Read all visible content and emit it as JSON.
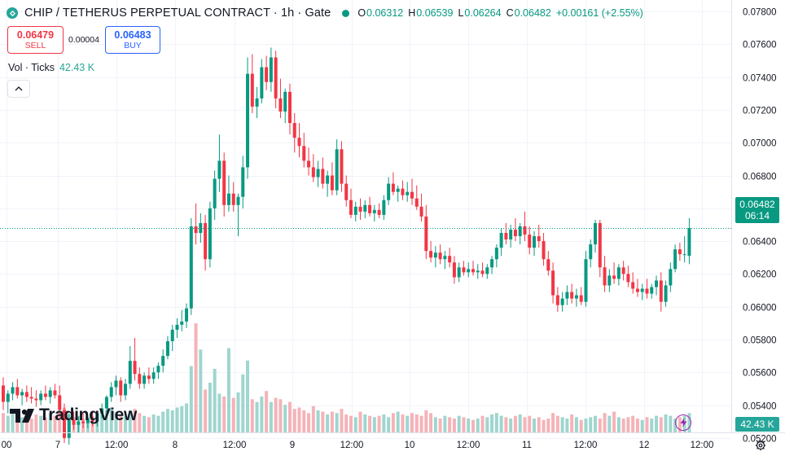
{
  "header": {
    "title": "CHIP / TETHERUS PERPETUAL CONTRACT · 1h · Gate",
    "ohlc": {
      "o_label": "O",
      "o": "0.06312",
      "h_label": "H",
      "h": "0.06539",
      "l_label": "L",
      "l": "0.06264",
      "c_label": "C",
      "c": "0.06482",
      "change": "+0.00161 (+2.55%)"
    }
  },
  "trade": {
    "sell_price": "0.06479",
    "sell_label": "SELL",
    "spread": "0.00004",
    "buy_price": "0.06483",
    "buy_label": "BUY"
  },
  "volume_legend": {
    "label": "Vol · Ticks",
    "value": "42.43 K"
  },
  "brand": {
    "name": "TradingView"
  },
  "price_tag": {
    "price": "0.06482",
    "countdown": "06:14"
  },
  "volume_tag": "42.43 K",
  "colors": {
    "up": "#089981",
    "down": "#f23645",
    "vol_up": "#9fd6cf",
    "vol_down": "#f5b3b8",
    "accent": "#2962ff"
  },
  "chart_data": {
    "type": "candlestick",
    "y_axis": {
      "min": 0.051,
      "max": 0.0786,
      "ticks": [
        "0.07800",
        "0.07600",
        "0.07400",
        "0.07200",
        "0.07000",
        "0.06800",
        "0.06600",
        "0.06400",
        "0.06200",
        "0.06000",
        "0.05800",
        "0.05600",
        "0.05400",
        "0.05200"
      ]
    },
    "x_axis_labels": [
      "00",
      "7",
      "12:00",
      "8",
      "12:00",
      "9",
      "12:00",
      "10",
      "12:00",
      "11",
      "12:00",
      "12",
      "12:00"
    ],
    "last_price": 0.06482,
    "candles": [
      {
        "o": 0.0552,
        "h": 0.0557,
        "l": 0.0537,
        "c": 0.0542
      },
      {
        "o": 0.0542,
        "h": 0.0549,
        "l": 0.0535,
        "c": 0.0547
      },
      {
        "o": 0.0547,
        "h": 0.0554,
        "l": 0.0543,
        "c": 0.0551
      },
      {
        "o": 0.0551,
        "h": 0.0556,
        "l": 0.0544,
        "c": 0.0546
      },
      {
        "o": 0.0546,
        "h": 0.055,
        "l": 0.054,
        "c": 0.0548
      },
      {
        "o": 0.0548,
        "h": 0.0552,
        "l": 0.0542,
        "c": 0.0545
      },
      {
        "o": 0.0545,
        "h": 0.0551,
        "l": 0.0541,
        "c": 0.0544
      },
      {
        "o": 0.0544,
        "h": 0.0549,
        "l": 0.0539,
        "c": 0.0543
      },
      {
        "o": 0.0543,
        "h": 0.0549,
        "l": 0.054,
        "c": 0.0547
      },
      {
        "o": 0.0547,
        "h": 0.0552,
        "l": 0.0543,
        "c": 0.0545
      },
      {
        "o": 0.0545,
        "h": 0.0551,
        "l": 0.0541,
        "c": 0.0549
      },
      {
        "o": 0.0549,
        "h": 0.0553,
        "l": 0.0544,
        "c": 0.0546
      },
      {
        "o": 0.0546,
        "h": 0.0552,
        "l": 0.0533,
        "c": 0.0537
      },
      {
        "o": 0.0537,
        "h": 0.0541,
        "l": 0.0517,
        "c": 0.052
      },
      {
        "o": 0.052,
        "h": 0.0535,
        "l": 0.0516,
        "c": 0.0531
      },
      {
        "o": 0.0531,
        "h": 0.0536,
        "l": 0.0525,
        "c": 0.0528
      },
      {
        "o": 0.0528,
        "h": 0.0533,
        "l": 0.0523,
        "c": 0.053
      },
      {
        "o": 0.053,
        "h": 0.0535,
        "l": 0.0526,
        "c": 0.0529
      },
      {
        "o": 0.0529,
        "h": 0.0534,
        "l": 0.0526,
        "c": 0.0532
      },
      {
        "o": 0.0532,
        "h": 0.0536,
        "l": 0.0527,
        "c": 0.053
      },
      {
        "o": 0.053,
        "h": 0.0536,
        "l": 0.0527,
        "c": 0.0535
      },
      {
        "o": 0.0535,
        "h": 0.0541,
        "l": 0.0532,
        "c": 0.0538
      },
      {
        "o": 0.0538,
        "h": 0.0546,
        "l": 0.0535,
        "c": 0.0545
      },
      {
        "o": 0.0545,
        "h": 0.0554,
        "l": 0.0542,
        "c": 0.0551
      },
      {
        "o": 0.0551,
        "h": 0.0558,
        "l": 0.0546,
        "c": 0.0555
      },
      {
        "o": 0.0555,
        "h": 0.0557,
        "l": 0.0542,
        "c": 0.0546
      },
      {
        "o": 0.0546,
        "h": 0.0556,
        "l": 0.0543,
        "c": 0.0553
      },
      {
        "o": 0.0553,
        "h": 0.0576,
        "l": 0.055,
        "c": 0.0567
      },
      {
        "o": 0.0567,
        "h": 0.0581,
        "l": 0.0555,
        "c": 0.0559
      },
      {
        "o": 0.0559,
        "h": 0.0563,
        "l": 0.055,
        "c": 0.0553
      },
      {
        "o": 0.0553,
        "h": 0.056,
        "l": 0.055,
        "c": 0.0558
      },
      {
        "o": 0.0558,
        "h": 0.0563,
        "l": 0.0553,
        "c": 0.0556
      },
      {
        "o": 0.0556,
        "h": 0.0563,
        "l": 0.0553,
        "c": 0.056
      },
      {
        "o": 0.056,
        "h": 0.0566,
        "l": 0.0556,
        "c": 0.0564
      },
      {
        "o": 0.0564,
        "h": 0.0574,
        "l": 0.056,
        "c": 0.057
      },
      {
        "o": 0.057,
        "h": 0.0582,
        "l": 0.0568,
        "c": 0.0579
      },
      {
        "o": 0.0579,
        "h": 0.0589,
        "l": 0.0573,
        "c": 0.0586
      },
      {
        "o": 0.0586,
        "h": 0.0593,
        "l": 0.0581,
        "c": 0.0589
      },
      {
        "o": 0.0589,
        "h": 0.0598,
        "l": 0.0585,
        "c": 0.0591
      },
      {
        "o": 0.0591,
        "h": 0.0602,
        "l": 0.0587,
        "c": 0.0599
      },
      {
        "o": 0.0599,
        "h": 0.0654,
        "l": 0.0595,
        "c": 0.0649
      },
      {
        "o": 0.0649,
        "h": 0.0663,
        "l": 0.0638,
        "c": 0.0645
      },
      {
        "o": 0.0645,
        "h": 0.0657,
        "l": 0.0639,
        "c": 0.0651
      },
      {
        "o": 0.0651,
        "h": 0.0656,
        "l": 0.0622,
        "c": 0.0629
      },
      {
        "o": 0.0629,
        "h": 0.0664,
        "l": 0.0624,
        "c": 0.066
      },
      {
        "o": 0.066,
        "h": 0.0683,
        "l": 0.0653,
        "c": 0.0678
      },
      {
        "o": 0.0678,
        "h": 0.0705,
        "l": 0.067,
        "c": 0.0689
      },
      {
        "o": 0.0689,
        "h": 0.0694,
        "l": 0.0655,
        "c": 0.0662
      },
      {
        "o": 0.0662,
        "h": 0.068,
        "l": 0.0658,
        "c": 0.0669
      },
      {
        "o": 0.0669,
        "h": 0.0676,
        "l": 0.0658,
        "c": 0.0662
      },
      {
        "o": 0.0662,
        "h": 0.0669,
        "l": 0.0643,
        "c": 0.0667
      },
      {
        "o": 0.0667,
        "h": 0.0692,
        "l": 0.066,
        "c": 0.0685
      },
      {
        "o": 0.0685,
        "h": 0.0752,
        "l": 0.0678,
        "c": 0.0742
      },
      {
        "o": 0.0742,
        "h": 0.0754,
        "l": 0.0718,
        "c": 0.0722
      },
      {
        "o": 0.0722,
        "h": 0.0734,
        "l": 0.0715,
        "c": 0.0727
      },
      {
        "o": 0.0727,
        "h": 0.0751,
        "l": 0.0724,
        "c": 0.0746
      },
      {
        "o": 0.0746,
        "h": 0.0753,
        "l": 0.0732,
        "c": 0.0737
      },
      {
        "o": 0.0737,
        "h": 0.0758,
        "l": 0.0731,
        "c": 0.0752
      },
      {
        "o": 0.0752,
        "h": 0.0756,
        "l": 0.0721,
        "c": 0.0727
      },
      {
        "o": 0.0727,
        "h": 0.0739,
        "l": 0.0715,
        "c": 0.0719
      },
      {
        "o": 0.0719,
        "h": 0.0733,
        "l": 0.0712,
        "c": 0.0731
      },
      {
        "o": 0.0731,
        "h": 0.0736,
        "l": 0.0705,
        "c": 0.0712
      },
      {
        "o": 0.0712,
        "h": 0.0718,
        "l": 0.0694,
        "c": 0.0703
      },
      {
        "o": 0.0703,
        "h": 0.0712,
        "l": 0.0691,
        "c": 0.0698
      },
      {
        "o": 0.0698,
        "h": 0.0706,
        "l": 0.0685,
        "c": 0.0689
      },
      {
        "o": 0.0689,
        "h": 0.0697,
        "l": 0.068,
        "c": 0.0685
      },
      {
        "o": 0.0685,
        "h": 0.0693,
        "l": 0.0676,
        "c": 0.0679
      },
      {
        "o": 0.0679,
        "h": 0.0689,
        "l": 0.0673,
        "c": 0.0684
      },
      {
        "o": 0.0684,
        "h": 0.0691,
        "l": 0.0672,
        "c": 0.0675
      },
      {
        "o": 0.0675,
        "h": 0.0683,
        "l": 0.0667,
        "c": 0.068
      },
      {
        "o": 0.068,
        "h": 0.0688,
        "l": 0.0668,
        "c": 0.0671
      },
      {
        "o": 0.0671,
        "h": 0.0702,
        "l": 0.0668,
        "c": 0.0696
      },
      {
        "o": 0.0696,
        "h": 0.0701,
        "l": 0.067,
        "c": 0.0675
      },
      {
        "o": 0.0675,
        "h": 0.068,
        "l": 0.0661,
        "c": 0.0665
      },
      {
        "o": 0.0665,
        "h": 0.0672,
        "l": 0.0654,
        "c": 0.0656
      },
      {
        "o": 0.0656,
        "h": 0.0664,
        "l": 0.0652,
        "c": 0.0661
      },
      {
        "o": 0.0661,
        "h": 0.0666,
        "l": 0.0653,
        "c": 0.0658
      },
      {
        "o": 0.0658,
        "h": 0.0665,
        "l": 0.0654,
        "c": 0.0662
      },
      {
        "o": 0.0662,
        "h": 0.0667,
        "l": 0.0655,
        "c": 0.0657
      },
      {
        "o": 0.0657,
        "h": 0.0662,
        "l": 0.0652,
        "c": 0.0659
      },
      {
        "o": 0.0659,
        "h": 0.0663,
        "l": 0.0654,
        "c": 0.0656
      },
      {
        "o": 0.0656,
        "h": 0.0668,
        "l": 0.0653,
        "c": 0.0665
      },
      {
        "o": 0.0665,
        "h": 0.0679,
        "l": 0.0662,
        "c": 0.0675
      },
      {
        "o": 0.0675,
        "h": 0.0682,
        "l": 0.0668,
        "c": 0.067
      },
      {
        "o": 0.067,
        "h": 0.0674,
        "l": 0.0664,
        "c": 0.0672
      },
      {
        "o": 0.0672,
        "h": 0.0677,
        "l": 0.0665,
        "c": 0.0668
      },
      {
        "o": 0.0668,
        "h": 0.0676,
        "l": 0.0664,
        "c": 0.067
      },
      {
        "o": 0.067,
        "h": 0.0678,
        "l": 0.0662,
        "c": 0.0666
      },
      {
        "o": 0.0666,
        "h": 0.0674,
        "l": 0.0659,
        "c": 0.0661
      },
      {
        "o": 0.0661,
        "h": 0.0669,
        "l": 0.0652,
        "c": 0.0655
      },
      {
        "o": 0.0655,
        "h": 0.0662,
        "l": 0.0629,
        "c": 0.0634
      },
      {
        "o": 0.0634,
        "h": 0.064,
        "l": 0.0627,
        "c": 0.063
      },
      {
        "o": 0.063,
        "h": 0.0637,
        "l": 0.0624,
        "c": 0.0633
      },
      {
        "o": 0.0633,
        "h": 0.0638,
        "l": 0.0626,
        "c": 0.0629
      },
      {
        "o": 0.0629,
        "h": 0.0634,
        "l": 0.0623,
        "c": 0.0631
      },
      {
        "o": 0.0631,
        "h": 0.0636,
        "l": 0.0624,
        "c": 0.0627
      },
      {
        "o": 0.0627,
        "h": 0.0631,
        "l": 0.0614,
        "c": 0.0618
      },
      {
        "o": 0.0618,
        "h": 0.0627,
        "l": 0.0615,
        "c": 0.0624
      },
      {
        "o": 0.0624,
        "h": 0.0628,
        "l": 0.0619,
        "c": 0.0621
      },
      {
        "o": 0.0621,
        "h": 0.0627,
        "l": 0.0618,
        "c": 0.0623
      },
      {
        "o": 0.0623,
        "h": 0.0628,
        "l": 0.0619,
        "c": 0.0621
      },
      {
        "o": 0.0621,
        "h": 0.0626,
        "l": 0.0617,
        "c": 0.0622
      },
      {
        "o": 0.0622,
        "h": 0.0627,
        "l": 0.0618,
        "c": 0.062
      },
      {
        "o": 0.062,
        "h": 0.0626,
        "l": 0.0617,
        "c": 0.0624
      },
      {
        "o": 0.0624,
        "h": 0.0631,
        "l": 0.062,
        "c": 0.0629
      },
      {
        "o": 0.0629,
        "h": 0.0638,
        "l": 0.0624,
        "c": 0.0636
      },
      {
        "o": 0.0636,
        "h": 0.0648,
        "l": 0.0631,
        "c": 0.0645
      },
      {
        "o": 0.0645,
        "h": 0.0651,
        "l": 0.0638,
        "c": 0.0641
      },
      {
        "o": 0.0641,
        "h": 0.065,
        "l": 0.0636,
        "c": 0.0647
      },
      {
        "o": 0.0647,
        "h": 0.0654,
        "l": 0.064,
        "c": 0.0643
      },
      {
        "o": 0.0643,
        "h": 0.0651,
        "l": 0.0638,
        "c": 0.0649
      },
      {
        "o": 0.0649,
        "h": 0.0658,
        "l": 0.064,
        "c": 0.0644
      },
      {
        "o": 0.0644,
        "h": 0.0649,
        "l": 0.0632,
        "c": 0.0636
      },
      {
        "o": 0.0636,
        "h": 0.0646,
        "l": 0.0631,
        "c": 0.0643
      },
      {
        "o": 0.0643,
        "h": 0.065,
        "l": 0.0636,
        "c": 0.064
      },
      {
        "o": 0.064,
        "h": 0.0645,
        "l": 0.0625,
        "c": 0.0629
      },
      {
        "o": 0.0629,
        "h": 0.0634,
        "l": 0.0619,
        "c": 0.0622
      },
      {
        "o": 0.0622,
        "h": 0.0627,
        "l": 0.0602,
        "c": 0.0607
      },
      {
        "o": 0.0607,
        "h": 0.0612,
        "l": 0.0597,
        "c": 0.0601
      },
      {
        "o": 0.0601,
        "h": 0.0609,
        "l": 0.0597,
        "c": 0.0605
      },
      {
        "o": 0.0605,
        "h": 0.0613,
        "l": 0.0601,
        "c": 0.0609
      },
      {
        "o": 0.0609,
        "h": 0.0614,
        "l": 0.0602,
        "c": 0.0605
      },
      {
        "o": 0.0605,
        "h": 0.0611,
        "l": 0.06,
        "c": 0.0607
      },
      {
        "o": 0.0607,
        "h": 0.0612,
        "l": 0.0601,
        "c": 0.0603
      },
      {
        "o": 0.0603,
        "h": 0.0634,
        "l": 0.06,
        "c": 0.0629
      },
      {
        "o": 0.0629,
        "h": 0.0641,
        "l": 0.0624,
        "c": 0.0638
      },
      {
        "o": 0.0638,
        "h": 0.0653,
        "l": 0.0633,
        "c": 0.0651
      },
      {
        "o": 0.0651,
        "h": 0.0653,
        "l": 0.0618,
        "c": 0.0624
      },
      {
        "o": 0.0624,
        "h": 0.0631,
        "l": 0.0609,
        "c": 0.0613
      },
      {
        "o": 0.0613,
        "h": 0.0623,
        "l": 0.0609,
        "c": 0.0619
      },
      {
        "o": 0.0619,
        "h": 0.0627,
        "l": 0.0614,
        "c": 0.0617
      },
      {
        "o": 0.0617,
        "h": 0.0626,
        "l": 0.0613,
        "c": 0.0624
      },
      {
        "o": 0.0624,
        "h": 0.0628,
        "l": 0.0616,
        "c": 0.062
      },
      {
        "o": 0.062,
        "h": 0.0625,
        "l": 0.0612,
        "c": 0.0615
      },
      {
        "o": 0.0615,
        "h": 0.0621,
        "l": 0.0608,
        "c": 0.0611
      },
      {
        "o": 0.0611,
        "h": 0.0617,
        "l": 0.0606,
        "c": 0.0609
      },
      {
        "o": 0.0609,
        "h": 0.0614,
        "l": 0.0604,
        "c": 0.0611
      },
      {
        "o": 0.0611,
        "h": 0.0617,
        "l": 0.0605,
        "c": 0.0608
      },
      {
        "o": 0.0608,
        "h": 0.0614,
        "l": 0.0605,
        "c": 0.0612
      },
      {
        "o": 0.0612,
        "h": 0.0619,
        "l": 0.0607,
        "c": 0.0616
      },
      {
        "o": 0.0616,
        "h": 0.0621,
        "l": 0.0597,
        "c": 0.0603
      },
      {
        "o": 0.0603,
        "h": 0.0616,
        "l": 0.06,
        "c": 0.0613
      },
      {
        "o": 0.0613,
        "h": 0.0627,
        "l": 0.0609,
        "c": 0.0623
      },
      {
        "o": 0.0623,
        "h": 0.0638,
        "l": 0.0621,
        "c": 0.0635
      },
      {
        "o": 0.0635,
        "h": 0.0639,
        "l": 0.0628,
        "c": 0.0632
      },
      {
        "o": 0.0632,
        "h": 0.0643,
        "l": 0.0627,
        "c": 0.0632
      },
      {
        "o": 0.0631,
        "h": 0.0654,
        "l": 0.0626,
        "c": 0.0648
      }
    ],
    "volume": [
      14,
      12,
      16,
      13,
      11,
      12,
      10,
      13,
      12,
      11,
      14,
      12,
      15,
      18,
      13,
      11,
      12,
      10,
      11,
      12,
      13,
      14,
      16,
      18,
      15,
      13,
      12,
      16,
      17,
      14,
      12,
      11,
      13,
      12,
      15,
      17,
      16,
      18,
      19,
      21,
      48,
      79,
      60,
      31,
      36,
      46,
      28,
      26,
      61,
      25,
      29,
      42,
      52,
      24,
      22,
      26,
      30,
      22,
      25,
      24,
      20,
      22,
      17,
      18,
      16,
      14,
      19,
      16,
      15,
      13,
      15,
      14,
      17,
      13,
      12,
      11,
      15,
      13,
      12,
      11,
      12,
      13,
      11,
      14,
      15,
      13,
      12,
      14,
      13,
      12,
      16,
      14,
      11,
      10,
      12,
      11,
      10,
      12,
      11,
      10,
      9,
      10,
      12,
      11,
      13,
      14,
      12,
      11,
      10,
      12,
      13,
      11,
      12,
      10,
      11,
      9,
      10,
      14,
      12,
      11,
      10,
      13,
      11,
      9,
      10,
      11,
      12,
      10,
      14,
      12,
      15,
      11,
      10,
      11,
      12,
      10,
      9,
      11,
      10,
      12,
      11,
      13,
      12,
      10,
      11,
      12,
      14,
      13
    ]
  }
}
